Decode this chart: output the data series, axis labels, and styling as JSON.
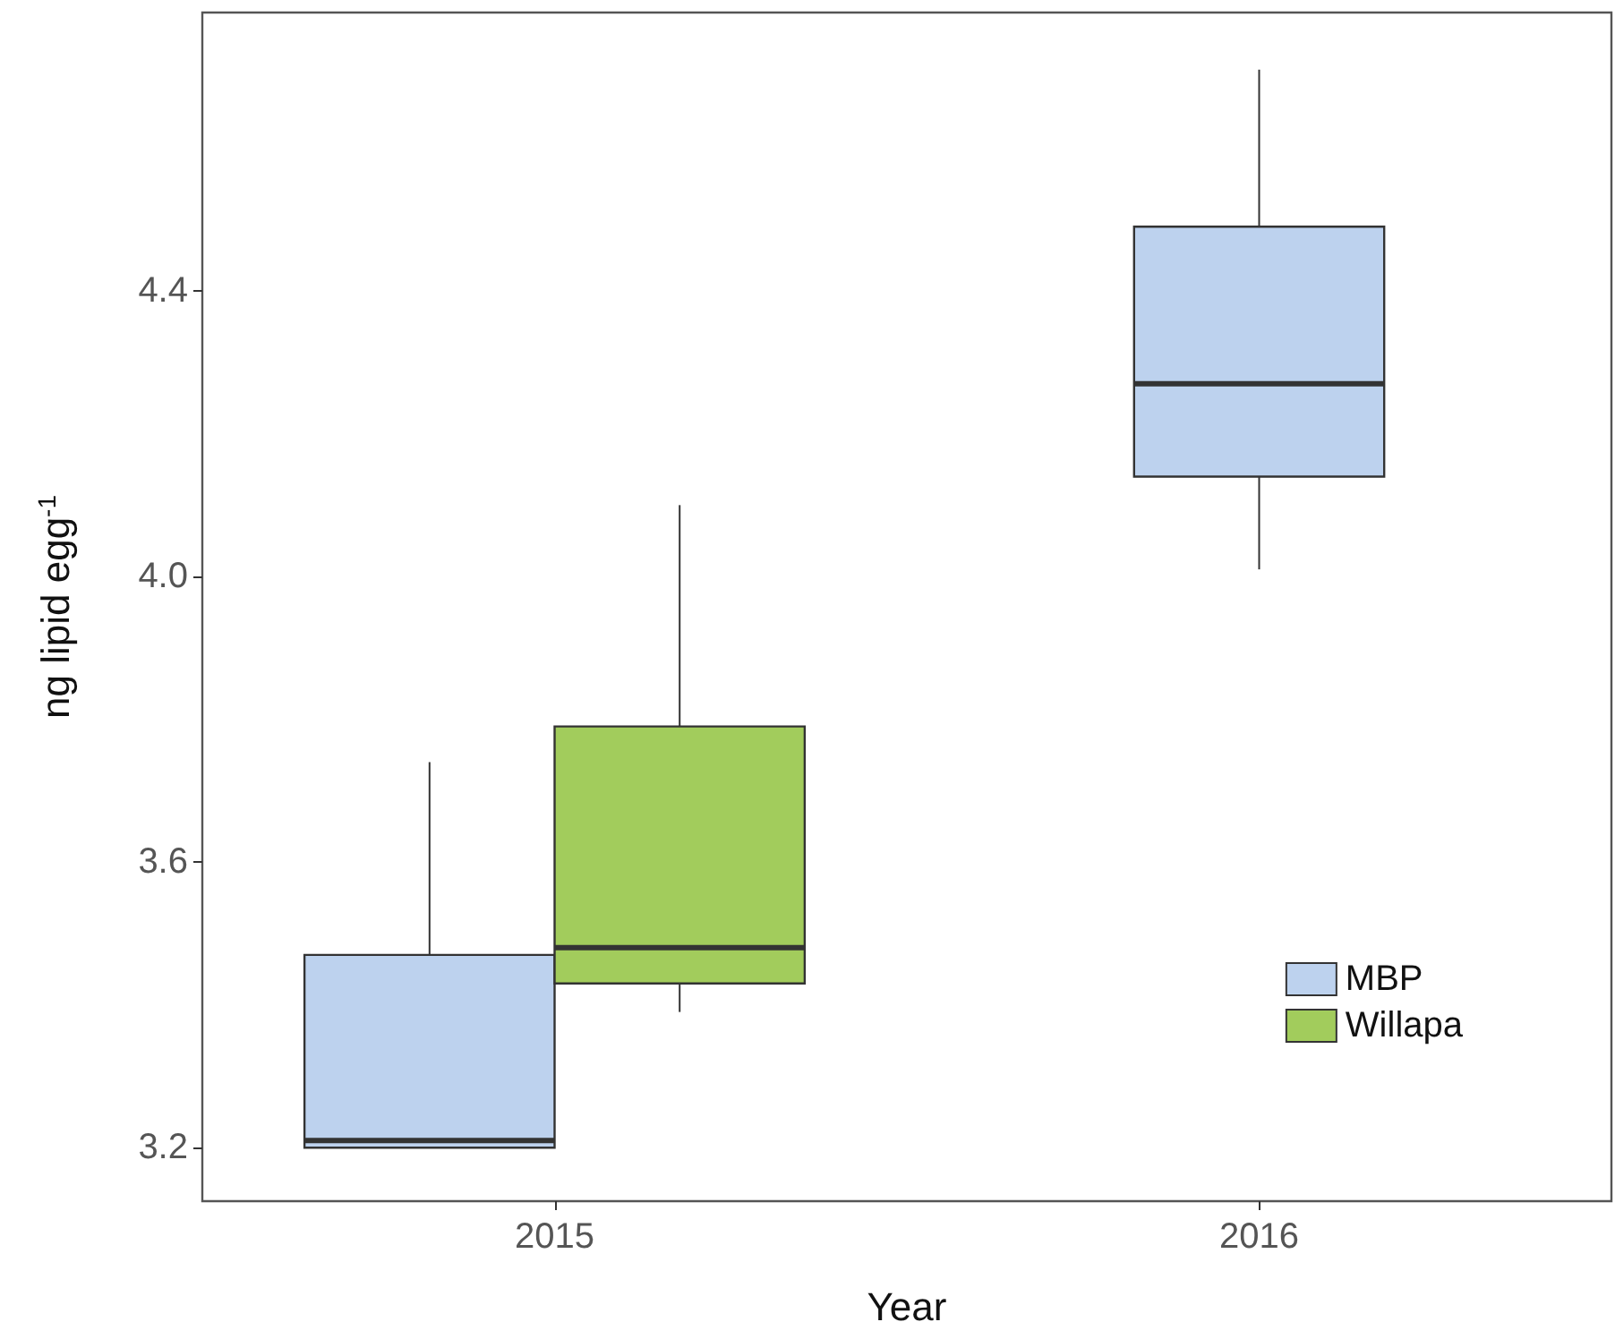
{
  "chart_data": {
    "type": "box",
    "xlabel": "Year",
    "ylabel": "ng lipid egg$^{-1}$",
    "categories": [
      "2015",
      "2016"
    ],
    "series": [
      {
        "name": "MBP",
        "color": "#bdd2ee",
        "boxes": [
          {
            "low": 3.2,
            "q1": 3.2,
            "median": 3.21,
            "q3": 3.47,
            "high": 3.74
          },
          {
            "low": 4.01,
            "q1": 4.14,
            "median": 4.27,
            "q3": 4.49,
            "high": 4.71
          }
        ]
      },
      {
        "name": "Willapa",
        "color": "#a2cc5c",
        "boxes": [
          {
            "low": 3.39,
            "q1": 3.43,
            "median": 3.48,
            "q3": 3.79,
            "high": 4.1
          },
          null
        ]
      }
    ],
    "ylim": [
      3.125,
      4.79
    ],
    "yticks": [
      3.2,
      3.6,
      {
        "value": 4,
        "label": "4.0"
      },
      4.4
    ],
    "grid": false,
    "legend": "bottom right"
  }
}
